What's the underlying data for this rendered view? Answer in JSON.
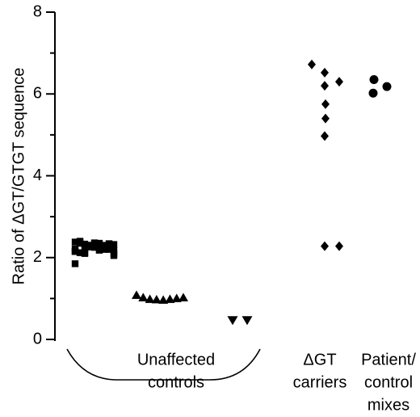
{
  "chart_data": {
    "type": "scatter",
    "title": "",
    "xlabel": "",
    "ylabel": "Ratio of ΔGT/GTGT sequence",
    "ylim": [
      0,
      8
    ],
    "yticks": [
      0,
      2,
      4,
      6,
      8
    ],
    "grid": false,
    "legend": "none",
    "groups": [
      {
        "label_lines": [
          "Unaffected",
          "controls"
        ],
        "bracketed": true,
        "series": [
          {
            "marker": "square",
            "values": [
              2.38,
              2.35,
              2.33,
              2.3,
              2.28,
              2.25,
              2.22,
              2.2,
              2.18,
              2.15,
              2.12,
              2.1,
              2.3,
              2.25,
              2.35,
              2.2,
              2.28,
              2.32,
              2.15,
              2.4,
              2.22,
              2.27,
              2.36,
              2.18,
              2.3,
              2.24,
              2.05,
              1.85,
              2.38,
              2.12,
              2.26,
              2.33,
              2.19,
              2.29,
              2.34,
              2.1,
              2.21
            ]
          },
          {
            "marker": "triangle-up",
            "values": [
              1.08,
              1.02,
              0.98,
              0.97,
              0.96,
              0.98,
              1.0,
              1.02
            ]
          },
          {
            "marker": "triangle-down",
            "values": [
              0.47,
              0.47
            ]
          }
        ]
      },
      {
        "label_lines": [
          "ΔGT",
          "carriers"
        ],
        "bracketed": false,
        "series": [
          {
            "marker": "diamond",
            "values": [
              6.72,
              6.52,
              6.3,
              6.2,
              5.75,
              5.4,
              4.97,
              2.28,
              2.28
            ]
          }
        ]
      },
      {
        "label_lines": [
          "Patient/",
          "control",
          "mixes"
        ],
        "bracketed": false,
        "series": [
          {
            "marker": "circle",
            "values": [
              6.35,
              6.02,
              6.18
            ]
          }
        ]
      }
    ]
  }
}
